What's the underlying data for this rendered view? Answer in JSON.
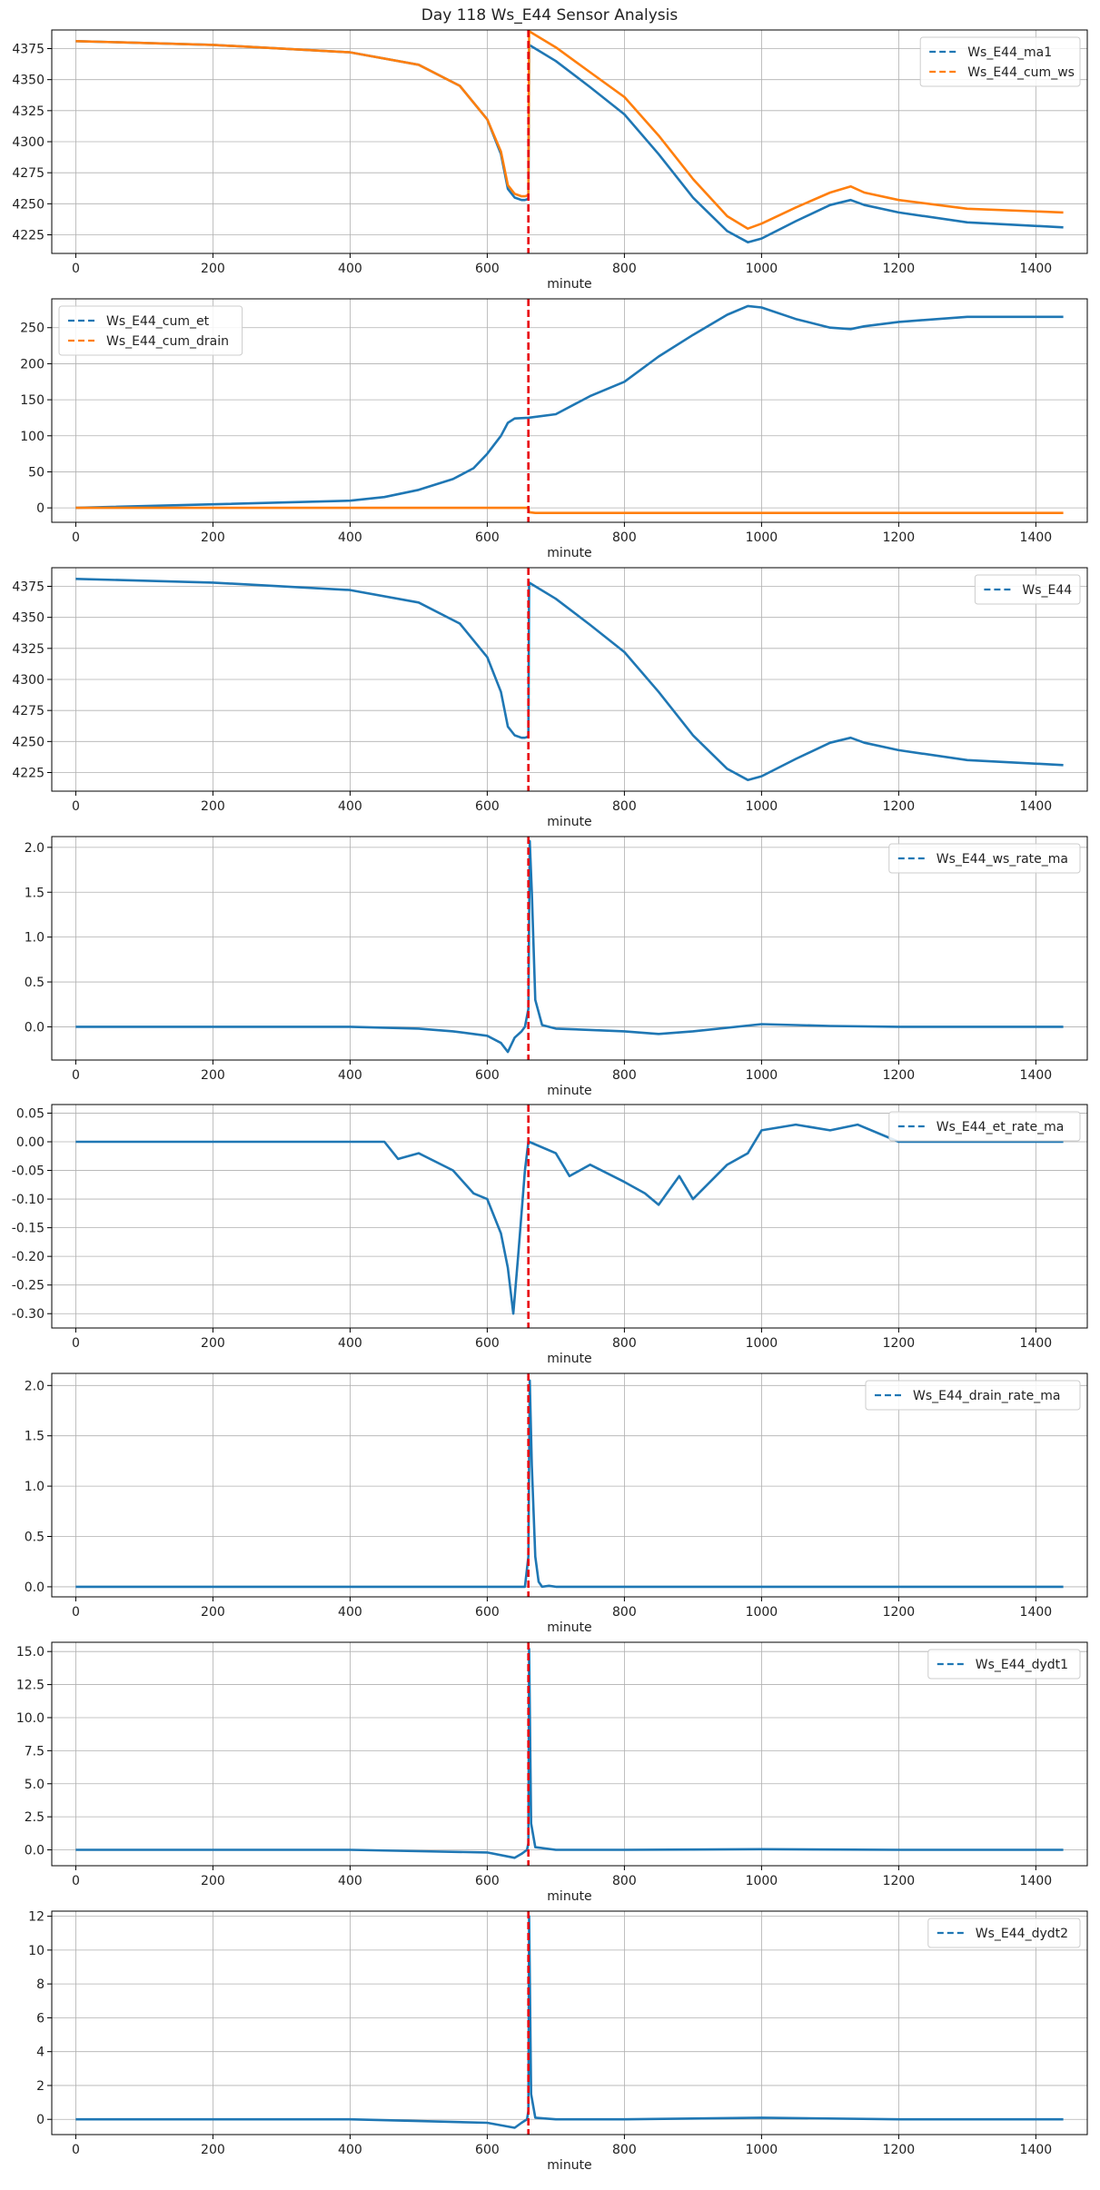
{
  "title": "Day 118 Ws_E44 Sensor Analysis",
  "colors": {
    "blue": "#1f77b4",
    "orange": "#ff7f0e",
    "event": "#e8000b",
    "grid": "#b0b0b0"
  },
  "event_minute": 660,
  "chart_data": [
    {
      "type": "line",
      "xlabel": "minute",
      "xlim": [
        -35,
        1475
      ],
      "ylim": [
        4210,
        4390
      ],
      "xticks": [
        0,
        200,
        400,
        600,
        800,
        1000,
        1200,
        1400
      ],
      "yticks": [
        4225,
        4250,
        4275,
        4300,
        4325,
        4350,
        4375
      ],
      "legend": "top-right",
      "series": [
        {
          "name": "Ws_E44_ma1",
          "color": "#1f77b4",
          "x": [
            0,
            200,
            400,
            500,
            560,
            600,
            620,
            630,
            640,
            650,
            655,
            660,
            661,
            670,
            700,
            750,
            800,
            850,
            900,
            950,
            980,
            1000,
            1050,
            1100,
            1130,
            1150,
            1200,
            1300,
            1440
          ],
          "y": [
            4381,
            4378,
            4372,
            4362,
            4345,
            4318,
            4290,
            4262,
            4255,
            4253,
            4253,
            4254,
            4378,
            4375,
            4365,
            4344,
            4322,
            4290,
            4255,
            4228,
            4219,
            4222,
            4236,
            4249,
            4253,
            4249,
            4243,
            4235,
            4231
          ]
        },
        {
          "name": "Ws_E44_cum_ws",
          "color": "#ff7f0e",
          "x": [
            0,
            200,
            400,
            500,
            560,
            600,
            620,
            630,
            640,
            650,
            655,
            660,
            661,
            670,
            700,
            750,
            800,
            850,
            900,
            950,
            980,
            1000,
            1050,
            1100,
            1130,
            1150,
            1200,
            1300,
            1440
          ],
          "y": [
            4381,
            4378,
            4372,
            4362,
            4345,
            4318,
            4292,
            4265,
            4258,
            4256,
            4256,
            4257,
            4389,
            4386,
            4376,
            4356,
            4336,
            4305,
            4270,
            4240,
            4230,
            4234,
            4247,
            4259,
            4264,
            4259,
            4253,
            4246,
            4243
          ]
        }
      ]
    },
    {
      "type": "line",
      "xlabel": "minute",
      "xlim": [
        -35,
        1475
      ],
      "ylim": [
        -20,
        290
      ],
      "xticks": [
        0,
        200,
        400,
        600,
        800,
        1000,
        1200,
        1400
      ],
      "yticks": [
        0,
        50,
        100,
        150,
        200,
        250
      ],
      "legend": "top-left",
      "series": [
        {
          "name": "Ws_E44_cum_et",
          "color": "#1f77b4",
          "x": [
            0,
            200,
            400,
            450,
            500,
            550,
            580,
            600,
            620,
            630,
            640,
            660,
            700,
            750,
            800,
            850,
            900,
            950,
            980,
            1000,
            1050,
            1100,
            1130,
            1150,
            1200,
            1300,
            1440
          ],
          "y": [
            0,
            5,
            10,
            15,
            25,
            40,
            55,
            75,
            100,
            118,
            124,
            125,
            130,
            155,
            175,
            210,
            240,
            268,
            280,
            278,
            262,
            250,
            248,
            252,
            258,
            265,
            265
          ]
        },
        {
          "name": "Ws_E44_cum_drain",
          "color": "#ff7f0e",
          "x": [
            0,
            200,
            400,
            600,
            655,
            660,
            661,
            670,
            700,
            1000,
            1440
          ],
          "y": [
            0,
            0,
            0,
            0,
            0,
            0,
            -6,
            -7,
            -7,
            -7,
            -7
          ]
        }
      ]
    },
    {
      "type": "line",
      "xlabel": "minute",
      "xlim": [
        -35,
        1475
      ],
      "ylim": [
        4210,
        4390
      ],
      "xticks": [
        0,
        200,
        400,
        600,
        800,
        1000,
        1200,
        1400
      ],
      "yticks": [
        4225,
        4250,
        4275,
        4300,
        4325,
        4350,
        4375
      ],
      "legend": "top-right",
      "series": [
        {
          "name": "Ws_E44",
          "color": "#1f77b4",
          "x": [
            0,
            200,
            400,
            500,
            560,
            600,
            620,
            630,
            640,
            650,
            655,
            660,
            661,
            670,
            700,
            750,
            800,
            850,
            900,
            950,
            980,
            1000,
            1050,
            1100,
            1130,
            1150,
            1200,
            1300,
            1440
          ],
          "y": [
            4381,
            4378,
            4372,
            4362,
            4345,
            4318,
            4290,
            4262,
            4255,
            4253,
            4253,
            4254,
            4378,
            4375,
            4365,
            4344,
            4322,
            4290,
            4255,
            4228,
            4219,
            4222,
            4236,
            4249,
            4253,
            4249,
            4243,
            4235,
            4231
          ]
        }
      ]
    },
    {
      "type": "line",
      "xlabel": "minute",
      "xlim": [
        -35,
        1475
      ],
      "ylim": [
        -0.37,
        2.12
      ],
      "xticks": [
        0,
        200,
        400,
        600,
        800,
        1000,
        1200,
        1400
      ],
      "yticks": [
        0.0,
        0.5,
        1.0,
        1.5,
        2.0
      ],
      "legend": "top-right",
      "series": [
        {
          "name": "Ws_E44_ws_rate_ma",
          "color": "#1f77b4",
          "x": [
            0,
            200,
            400,
            500,
            550,
            600,
            620,
            630,
            640,
            650,
            655,
            660,
            662,
            665,
            670,
            680,
            700,
            800,
            850,
            900,
            1000,
            1100,
            1200,
            1440
          ],
          "y": [
            0,
            0,
            0,
            -0.02,
            -0.05,
            -0.1,
            -0.18,
            -0.28,
            -0.12,
            -0.05,
            0,
            0.2,
            2.07,
            1.5,
            0.3,
            0.02,
            -0.02,
            -0.05,
            -0.08,
            -0.05,
            0.03,
            0.01,
            0,
            0
          ]
        }
      ]
    },
    {
      "type": "line",
      "xlabel": "minute",
      "xlim": [
        -35,
        1475
      ],
      "ylim": [
        -0.325,
        0.065
      ],
      "xticks": [
        0,
        200,
        400,
        600,
        800,
        1000,
        1200,
        1400
      ],
      "yticks": [
        0.05,
        0.0,
        -0.05,
        -0.1,
        -0.15,
        -0.2,
        -0.25,
        -0.3
      ],
      "legend": "top-right",
      "series": [
        {
          "name": "Ws_E44_et_rate_ma",
          "color": "#1f77b4",
          "x": [
            0,
            100,
            200,
            300,
            400,
            450,
            470,
            500,
            550,
            580,
            600,
            620,
            630,
            638,
            645,
            655,
            660,
            661,
            700,
            720,
            750,
            800,
            830,
            850,
            880,
            900,
            950,
            980,
            1000,
            1050,
            1100,
            1140,
            1200,
            1300,
            1440
          ],
          "y": [
            0,
            0,
            0,
            0,
            0,
            0,
            -0.03,
            -0.02,
            -0.05,
            -0.09,
            -0.1,
            -0.16,
            -0.22,
            -0.3,
            -0.2,
            -0.05,
            0,
            0,
            -0.02,
            -0.06,
            -0.04,
            -0.07,
            -0.09,
            -0.11,
            -0.06,
            -0.1,
            -0.04,
            -0.02,
            0.02,
            0.03,
            0.02,
            0.03,
            0,
            0,
            0
          ]
        }
      ]
    },
    {
      "type": "line",
      "xlabel": "minute",
      "xlim": [
        -35,
        1475
      ],
      "ylim": [
        -0.1,
        2.12
      ],
      "xticks": [
        0,
        200,
        400,
        600,
        800,
        1000,
        1200,
        1400
      ],
      "yticks": [
        0.0,
        0.5,
        1.0,
        1.5,
        2.0
      ],
      "legend": "top-right",
      "series": [
        {
          "name": "Ws_E44_drain_rate_ma",
          "color": "#1f77b4",
          "x": [
            0,
            400,
            600,
            655,
            660,
            662,
            665,
            670,
            675,
            680,
            690,
            700,
            1000,
            1440
          ],
          "y": [
            0,
            0,
            0,
            0,
            0.3,
            2.05,
            1.2,
            0.3,
            0.05,
            0,
            0.01,
            0,
            0,
            0
          ]
        }
      ]
    },
    {
      "type": "line",
      "xlabel": "minute",
      "xlim": [
        -35,
        1475
      ],
      "ylim": [
        -1.2,
        15.7
      ],
      "xticks": [
        0,
        200,
        400,
        600,
        800,
        1000,
        1200,
        1400
      ],
      "yticks": [
        0.0,
        2.5,
        5.0,
        7.5,
        10.0,
        12.5,
        15.0
      ],
      "legend": "top-right",
      "series": [
        {
          "name": "Ws_E44_dydt1",
          "color": "#1f77b4",
          "x": [
            0,
            200,
            400,
            500,
            600,
            640,
            650,
            658,
            660,
            661,
            664,
            670,
            700,
            800,
            1000,
            1200,
            1440
          ],
          "y": [
            0,
            0,
            0,
            -0.1,
            -0.2,
            -0.6,
            -0.3,
            0,
            0.5,
            15.2,
            2.0,
            0.2,
            0,
            0,
            0.05,
            0,
            0
          ]
        }
      ]
    },
    {
      "type": "line",
      "xlabel": "minute",
      "xlim": [
        -35,
        1475
      ],
      "ylim": [
        -0.9,
        12.3
      ],
      "xticks": [
        0,
        200,
        400,
        600,
        800,
        1000,
        1200,
        1400
      ],
      "yticks": [
        0,
        2,
        4,
        6,
        8,
        10,
        12
      ],
      "legend": "top-right",
      "series": [
        {
          "name": "Ws_E44_dydt2",
          "color": "#1f77b4",
          "x": [
            0,
            200,
            400,
            500,
            600,
            640,
            650,
            658,
            660,
            661,
            664,
            670,
            700,
            800,
            1000,
            1200,
            1440
          ],
          "y": [
            0,
            0,
            0,
            -0.1,
            -0.2,
            -0.5,
            -0.2,
            0,
            0.5,
            12.0,
            1.5,
            0.1,
            0,
            0,
            0.1,
            0,
            0
          ]
        }
      ]
    }
  ]
}
